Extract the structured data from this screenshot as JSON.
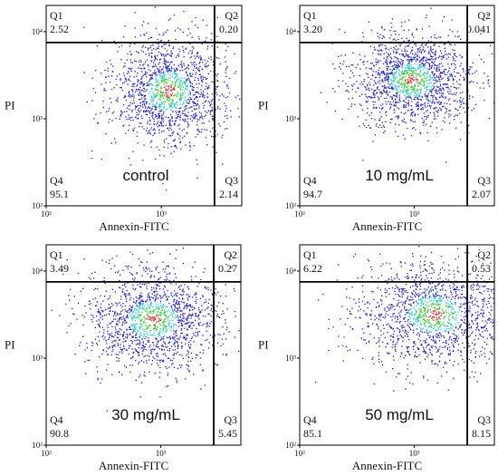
{
  "y_label": "PI",
  "x_label": "Annexin-FITC",
  "quadrant_names": [
    "Q1",
    "Q2",
    "Q3",
    "Q4"
  ],
  "chart_data": [
    {
      "type": "scatter",
      "title": "",
      "condition": "control",
      "xlabel": "Annexin-FITC",
      "ylabel": "PI",
      "x_scale": "log",
      "y_scale": "log",
      "xlim": [
        100,
        5000
      ],
      "ylim": [
        100,
        20000
      ],
      "x_ticks": [
        "10²",
        "10³"
      ],
      "y_ticks": [
        "10²",
        "10³",
        "10⁴"
      ],
      "gate": {
        "x": 2900,
        "y": 7500
      },
      "quadrants": {
        "Q1": "2.52",
        "Q2": "0.20",
        "Q3": "2.14",
        "Q4": "95.1"
      },
      "population": {
        "x_center": 1150,
        "y_center": 2100,
        "x_spread": 0.26,
        "y_spread": 0.32
      }
    },
    {
      "type": "scatter",
      "title": "",
      "condition": "10 mg/mL",
      "xlabel": "Annexin-FITC",
      "ylabel": "PI",
      "x_scale": "log",
      "y_scale": "log",
      "xlim": [
        100,
        5000
      ],
      "ylim": [
        100,
        20000
      ],
      "x_ticks": [
        "10²",
        "10³"
      ],
      "y_ticks": [
        "10²",
        "10³",
        "10⁴"
      ],
      "gate": {
        "x": 2900,
        "y": 7500
      },
      "quadrants": {
        "Q1": "3.20",
        "Q2": "0.041",
        "Q3": "2.07",
        "Q4": "94.7"
      },
      "population": {
        "x_center": 950,
        "y_center": 2800,
        "x_spread": 0.27,
        "y_spread": 0.27
      }
    },
    {
      "type": "scatter",
      "title": "",
      "condition": "30 mg/mL",
      "xlabel": "Annexin-FITC",
      "ylabel": "PI",
      "x_scale": "log",
      "y_scale": "log",
      "xlim": [
        100,
        5000
      ],
      "ylim": [
        100,
        20000
      ],
      "x_ticks": [
        "10²",
        "10³"
      ],
      "y_ticks": [
        "10²",
        "10³",
        "10⁴"
      ],
      "gate": {
        "x": 2900,
        "y": 7500
      },
      "quadrants": {
        "Q1": "3.49",
        "Q2": "0.27",
        "Q3": "5.45",
        "Q4": "90.8"
      },
      "population": {
        "x_center": 850,
        "y_center": 2800,
        "x_spread": 0.3,
        "y_spread": 0.3
      }
    },
    {
      "type": "scatter",
      "title": "",
      "condition": "50 mg/mL",
      "xlabel": "Annexin-FITC",
      "ylabel": "PI",
      "x_scale": "log",
      "y_scale": "log",
      "xlim": [
        100,
        5000
      ],
      "ylim": [
        100,
        20000
      ],
      "x_ticks": [
        "10²",
        "10³"
      ],
      "y_ticks": [
        "10²",
        "10³",
        "10⁴"
      ],
      "gate": {
        "x": 2900,
        "y": 7500
      },
      "quadrants": {
        "Q1": "6.22",
        "Q2": "0.53",
        "Q3": "8.15",
        "Q4": "85.1"
      },
      "population": {
        "x_center": 1500,
        "y_center": 3200,
        "x_spread": 0.33,
        "y_spread": 0.3
      }
    }
  ],
  "colors": {
    "points": "#1414d8",
    "density_mid": "#25c8c8",
    "density_high": "#33cc33",
    "density_peak": "#d83030",
    "frame": "#000000"
  }
}
